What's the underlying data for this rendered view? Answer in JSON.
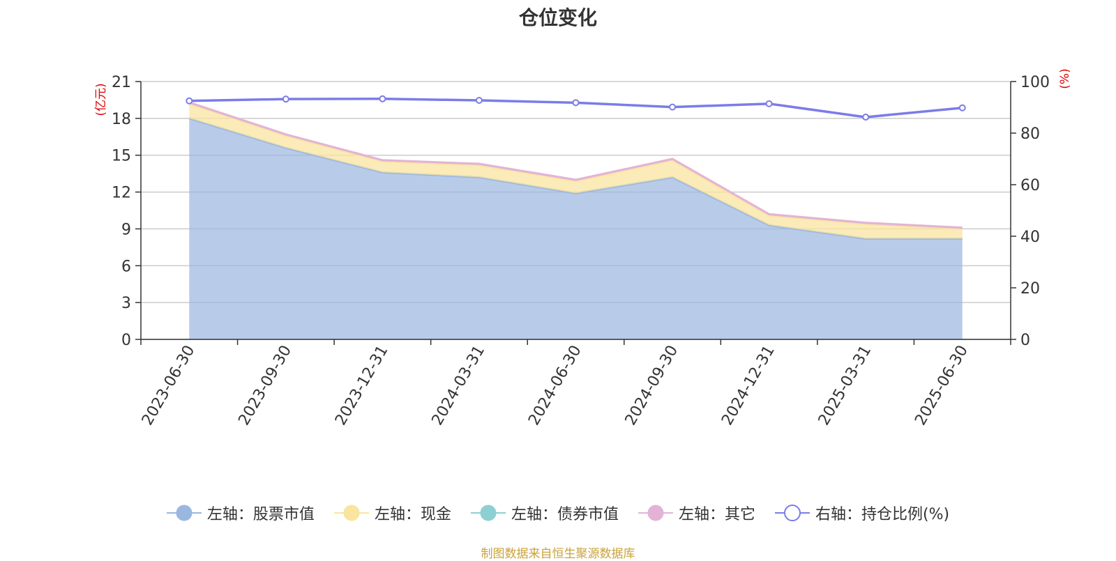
{
  "title": "仓位变化",
  "source_note": "制图数据来自恒生聚源数据库",
  "chart_data": {
    "type": "area",
    "title": "仓位变化",
    "categories": [
      "2023-06-30",
      "2023-09-30",
      "2023-12-31",
      "2024-03-31",
      "2024-06-30",
      "2024-09-30",
      "2024-12-31",
      "2025-03-31",
      "2025-06-30"
    ],
    "y_left": {
      "unit": "(亿元)",
      "ylim": [
        0,
        21
      ],
      "ticks": [
        "0",
        "3",
        "6",
        "9",
        "12",
        "15",
        "18",
        "21"
      ]
    },
    "y_right": {
      "unit": "(%)",
      "ylim": [
        0,
        100
      ],
      "ticks": [
        "0",
        "20",
        "40",
        "60",
        "80",
        "100"
      ]
    },
    "stacked_series": [
      {
        "name": "左轴：股票市值",
        "axis": "left",
        "color": "#9ab7e0",
        "values": [
          18.0,
          15.6,
          13.6,
          13.2,
          11.9,
          13.2,
          9.3,
          8.2,
          8.2
        ]
      },
      {
        "name": "左轴：现金",
        "axis": "left",
        "color": "#f9e4a0",
        "values": [
          1.2,
          1.0,
          0.9,
          1.0,
          1.0,
          1.4,
          0.8,
          1.2,
          0.8
        ]
      },
      {
        "name": "左轴：债券市值",
        "axis": "left",
        "color": "#8ecfd1",
        "values": [
          0,
          0,
          0,
          0,
          0,
          0,
          0,
          0,
          0
        ]
      },
      {
        "name": "左轴：其它",
        "axis": "left",
        "color": "#e3b3d6",
        "values": [
          0.1,
          0.1,
          0.1,
          0.1,
          0.1,
          0.1,
          0.1,
          0.1,
          0.1
        ]
      }
    ],
    "line_series": [
      {
        "name": "右轴：持仓比例(%)",
        "axis": "right",
        "color": "#7b7ce8",
        "values": [
          92.5,
          93.2,
          93.3,
          92.7,
          91.8,
          90.1,
          91.4,
          86.2,
          89.8
        ]
      }
    ],
    "grid": true,
    "legend_position": "bottom"
  }
}
